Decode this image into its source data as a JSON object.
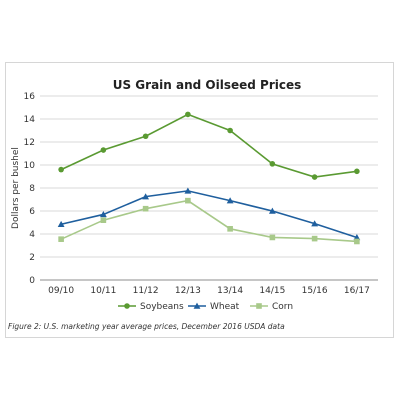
{
  "chart_data": {
    "type": "line",
    "title": "US Grain and Oilseed Prices",
    "xlabel": "",
    "ylabel": "Dollars per bushel",
    "ylim": [
      0,
      16
    ],
    "yticks": [
      0,
      2,
      4,
      6,
      8,
      10,
      12,
      14,
      16
    ],
    "grid": "horizontal",
    "legend_position": "bottom",
    "categories": [
      "09/10",
      "10/11",
      "11/12",
      "12/13",
      "13/14",
      "14/15",
      "15/16",
      "16/17"
    ],
    "series": [
      {
        "name": "Soybeans",
        "color": "#5a9a32",
        "marker": "circle",
        "values": [
          9.6,
          11.3,
          12.5,
          14.4,
          13.0,
          10.1,
          8.95,
          9.45
        ]
      },
      {
        "name": "Wheat",
        "color": "#1f5f9e",
        "marker": "triangle",
        "values": [
          4.85,
          5.7,
          7.25,
          7.75,
          6.9,
          6.0,
          4.9,
          3.7
        ]
      },
      {
        "name": "Corn",
        "color": "#a8c98a",
        "marker": "square",
        "values": [
          3.55,
          5.2,
          6.2,
          6.9,
          4.45,
          3.7,
          3.6,
          3.35
        ]
      }
    ]
  },
  "caption": "Figure 2: U.S. marketing year average prices, December 2016 USDA data"
}
